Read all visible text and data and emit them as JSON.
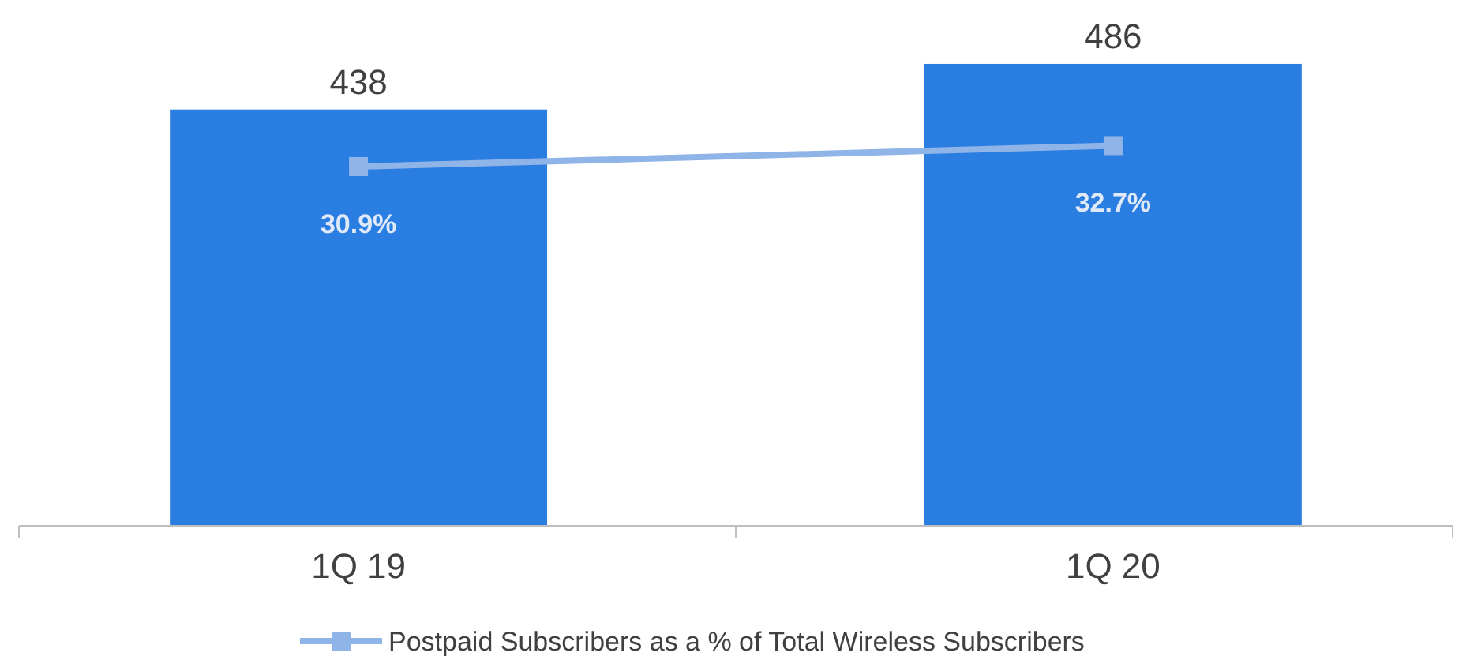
{
  "chart_data": {
    "type": "bar",
    "categories": [
      "1Q 19",
      "1Q 20"
    ],
    "series": [
      {
        "color": "#2a7de1",
        "values": [
          438,
          486
        ],
        "value_labels": [
          "438",
          "486"
        ]
      },
      {
        "type": "line",
        "axis": "y2",
        "name": "Postpaid Subscribers as a % of Total Wireless Subscribers",
        "color": "#8fb4e8",
        "values": [
          30.9,
          32.7
        ],
        "value_labels": [
          "30.9%",
          "32.7%"
        ],
        "marker": "square"
      }
    ],
    "legend": "bottom"
  }
}
